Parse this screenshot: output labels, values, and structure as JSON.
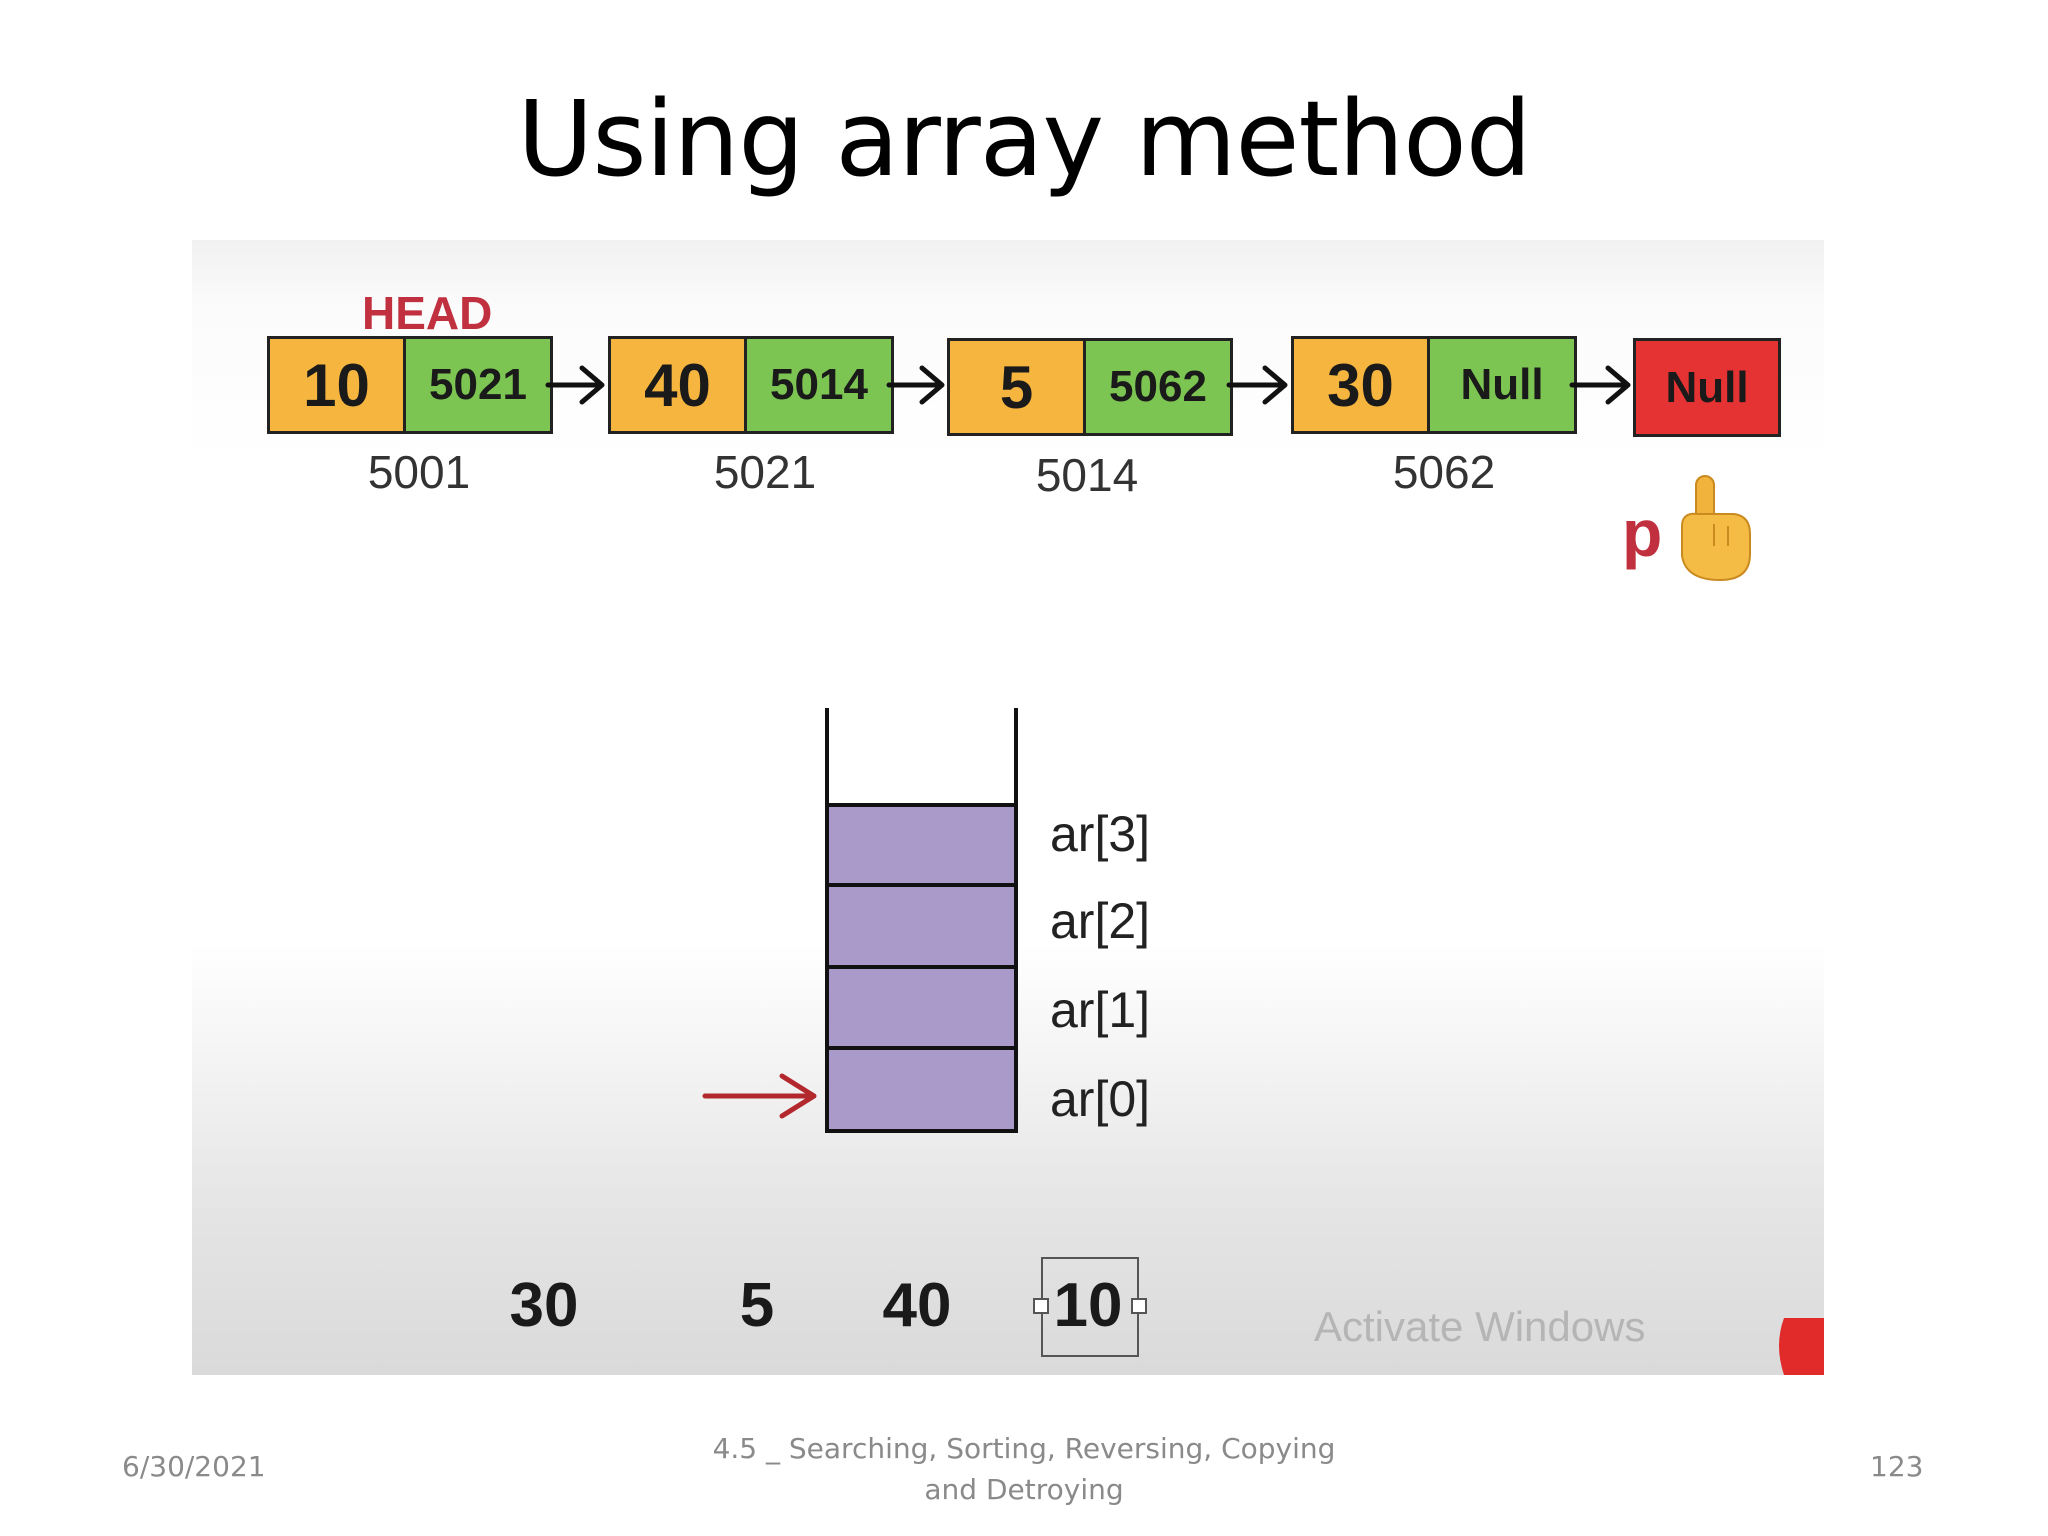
{
  "slide": {
    "title": "Using array method"
  },
  "diagram": {
    "head_label": "HEAD",
    "nodes": [
      {
        "value": "10",
        "next": "5021",
        "address": "5001"
      },
      {
        "value": "40",
        "next": "5014",
        "address": "5021"
      },
      {
        "value": "5",
        "next": "5062",
        "address": "5014"
      },
      {
        "value": "30",
        "next": "Null",
        "address": "5062"
      }
    ],
    "terminal": "Null",
    "pointer_label": "p",
    "pointer_icon": "pointing-hand-icon",
    "array_slots": [
      "ar[3]",
      "ar[2]",
      "ar[1]",
      "ar[0]"
    ],
    "sequence": [
      "30",
      "5",
      "40",
      "10"
    ],
    "colors": {
      "value_cell": "#f5b53f",
      "pointer_cell": "#7dc552",
      "null_cell": "#e53232",
      "array_fill": "#a99ac9",
      "accent": "#c0303e"
    },
    "watermark": "Activate Windows"
  },
  "footer": {
    "date": "6/30/2021",
    "subtitle_line1": "4.5 _ Searching, Sorting, Reversing, Copying",
    "subtitle_line2": "and Detroying",
    "page_number": "123"
  }
}
